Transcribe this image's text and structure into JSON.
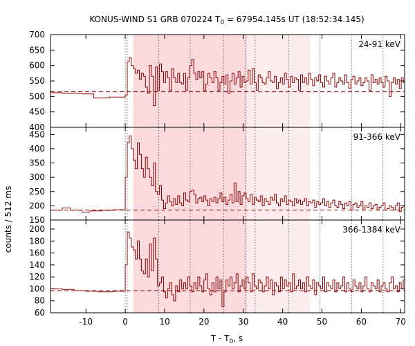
{
  "chart_data": {
    "type": "line",
    "title": {
      "prefix": "KONUS-WIND S1 GRB 070224 T",
      "sub": "0",
      "suffix": " = 67954.145s UT (18:52:34.145)"
    },
    "xlabel": {
      "prefix": "T - T",
      "sub": "0",
      "suffix": ", s"
    },
    "ylabel": "counts / 512 ms",
    "xlim": [
      -19,
      71
    ],
    "xticks": [
      -10,
      0,
      10,
      20,
      30,
      40,
      50,
      60,
      70
    ],
    "xtick_labels": [
      "-10",
      "0",
      "10",
      "20",
      "30",
      "40",
      "50",
      "60",
      "70"
    ],
    "shaded_regions": [
      {
        "x0": 2.0,
        "x1": 31.0,
        "color": "#fadadd"
      },
      {
        "x0": 31.0,
        "x1": 47.0,
        "color": "#fdeced"
      }
    ],
    "dotted_vlines": [
      0,
      0.5,
      8.5,
      16.5,
      25,
      30.5,
      33,
      41.5,
      49.5,
      57.5,
      65.5
    ],
    "line_color": "#8b0000",
    "panels": [
      {
        "name": "24-91 keV",
        "ylim": [
          400,
          700
        ],
        "yticks": [
          400,
          450,
          500,
          550,
          600,
          650,
          700
        ],
        "ytick_labels": [
          "400",
          "450",
          "500",
          "550",
          "600",
          "650",
          "700"
        ],
        "background": 515,
        "pre": [
          [
            -19,
            512
          ],
          [
            -16,
            510
          ],
          [
            -11,
            508
          ],
          [
            -8,
            495
          ],
          [
            -4,
            498
          ]
        ],
        "t_start": 0,
        "dt": 0.512,
        "values": [
          505,
          612,
          625,
          600,
          590,
          575,
          585,
          555,
          575,
          565,
          530,
          510,
          600,
          565,
          470,
          595,
          520,
          605,
          580,
          545,
          580,
          560,
          520,
          590,
          560,
          545,
          575,
          545,
          540,
          575,
          520,
          560,
          600,
          620,
          575,
          555,
          580,
          560,
          580,
          520,
          540,
          575,
          560,
          545,
          580,
          560,
          520,
          545,
          565,
          540,
          570,
          510,
          550,
          575,
          540,
          560,
          580,
          530,
          565,
          545,
          550,
          585,
          540,
          590,
          545,
          520,
          570,
          560,
          545,
          540,
          560,
          580,
          550,
          545,
          565,
          525,
          545,
          560,
          540,
          575,
          555,
          530,
          565,
          545,
          560,
          555,
          520,
          570,
          545,
          560,
          540,
          575,
          555,
          535,
          560,
          550,
          570,
          545,
          530,
          565,
          550,
          540,
          560,
          575,
          530,
          545,
          560,
          550,
          540,
          570,
          545,
          525,
          555,
          565,
          540,
          550,
          560,
          535,
          545,
          560,
          550,
          520,
          570,
          545,
          555,
          540,
          560,
          545,
          530,
          565,
          550,
          500,
          545,
          560,
          540,
          555,
          525,
          560,
          545,
          510,
          550,
          565,
          535,
          555,
          520,
          560,
          545,
          500
        ]
      },
      {
        "name": "91-366 keV",
        "ylim": [
          150,
          475
        ],
        "yticks": [
          150,
          200,
          250,
          300,
          350,
          400,
          450
        ],
        "ytick_labels": [
          "150",
          "200",
          "250",
          "300",
          "350",
          "400",
          "450"
        ],
        "background": 185,
        "pre": [
          [
            -19,
            185
          ],
          [
            -16,
            192
          ],
          [
            -14,
            185
          ],
          [
            -11,
            178
          ],
          [
            -9,
            182
          ],
          [
            -6,
            184
          ],
          [
            -3,
            186
          ]
        ],
        "t_start": 0,
        "dt": 0.512,
        "values": [
          300,
          420,
          445,
          400,
          360,
          330,
          420,
          380,
          330,
          300,
          370,
          330,
          300,
          270,
          350,
          250,
          240,
          270,
          220,
          190,
          210,
          235,
          215,
          200,
          225,
          205,
          235,
          210,
          200,
          245,
          220,
          215,
          250,
          255,
          240,
          210,
          225,
          230,
          215,
          235,
          220,
          200,
          225,
          215,
          230,
          210,
          225,
          245,
          215,
          230,
          205,
          220,
          240,
          210,
          280,
          215,
          250,
          205,
          235,
          245,
          225,
          215,
          240,
          205,
          230,
          220,
          215,
          235,
          200,
          225,
          215,
          205,
          230,
          220,
          240,
          210,
          200,
          225,
          215,
          235,
          205,
          220,
          215,
          200,
          225,
          210,
          220,
          205,
          215,
          225,
          200,
          215,
          210,
          220,
          195,
          215,
          205,
          210,
          225,
          200,
          215,
          195,
          210,
          220,
          200,
          195,
          215,
          205,
          190,
          210,
          200,
          215,
          185,
          205,
          210,
          195,
          200,
          215,
          185,
          200,
          195,
          210,
          190,
          200,
          205,
          185,
          195,
          200,
          210,
          185,
          190,
          200,
          195,
          185,
          200,
          210,
          180,
          195,
          200,
          190,
          185,
          200,
          195,
          185,
          205,
          190,
          180,
          195
        ]
      },
      {
        "name": "366-1384 keV",
        "ylim": [
          60,
          215
        ],
        "yticks": [
          60,
          80,
          100,
          120,
          140,
          160,
          180,
          200
        ],
        "ytick_labels": [
          "60",
          "80",
          "100",
          "120",
          "140",
          "160",
          "180",
          "200"
        ],
        "background": 97,
        "pre": [
          [
            -19,
            100
          ],
          [
            -16,
            99
          ],
          [
            -13,
            97
          ],
          [
            -10,
            96
          ],
          [
            -7,
            95
          ],
          [
            -3,
            96
          ]
        ],
        "t_start": 0,
        "dt": 0.512,
        "values": [
          140,
          195,
          185,
          170,
          165,
          150,
          180,
          150,
          130,
          125,
          150,
          120,
          175,
          130,
          185,
          150,
          105,
          110,
          120,
          95,
          85,
          100,
          110,
          90,
          80,
          105,
          95,
          115,
          100,
          110,
          100,
          120,
          105,
          95,
          110,
          100,
          120,
          105,
          95,
          115,
          125,
          100,
          90,
          110,
          95,
          120,
          100,
          115,
          70,
          95,
          115,
          105,
          120,
          100,
          110,
          125,
          95,
          105,
          115,
          100,
          120,
          110,
          95,
          125,
          105,
          100,
          115,
          110,
          95,
          105,
          120,
          100,
          115,
          90,
          110,
          105,
          95,
          120,
          100,
          115,
          105,
          110,
          95,
          125,
          100,
          105,
          115,
          100,
          110,
          95,
          120,
          105,
          100,
          115,
          90,
          110,
          105,
          100,
          120,
          95,
          110,
          105,
          100,
          115,
          95,
          110,
          100,
          105,
          120,
          95,
          110,
          100,
          95,
          115,
          105,
          100,
          110,
          95,
          105,
          120,
          100,
          95,
          110,
          105,
          100,
          115,
          95,
          105,
          110,
          100,
          95,
          110,
          120,
          100,
          105,
          95,
          110,
          100,
          115,
          105,
          95,
          110,
          100,
          105,
          95,
          110,
          100,
          105
        ]
      }
    ]
  }
}
